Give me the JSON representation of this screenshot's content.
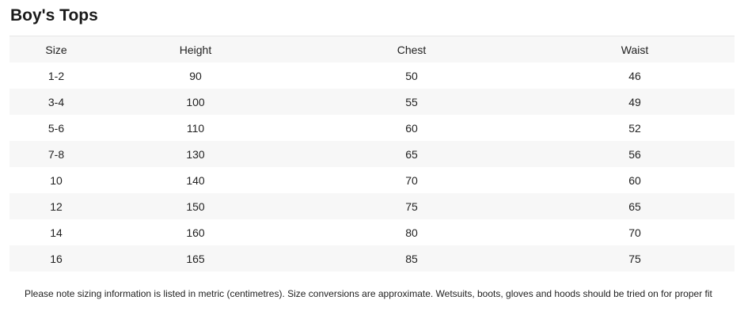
{
  "title": "Boy's Tops",
  "columns": [
    "Size",
    "Height",
    "Chest",
    "Waist"
  ],
  "rows": [
    [
      "1-2",
      "90",
      "50",
      "46"
    ],
    [
      "3-4",
      "100",
      "55",
      "49"
    ],
    [
      "5-6",
      "110",
      "60",
      "52"
    ],
    [
      "7-8",
      "130",
      "65",
      "56"
    ],
    [
      "10",
      "140",
      "70",
      "60"
    ],
    [
      "12",
      "150",
      "75",
      "65"
    ],
    [
      "14",
      "160",
      "80",
      "70"
    ],
    [
      "16",
      "165",
      "85",
      "75"
    ]
  ],
  "note": "Please note sizing information is listed in metric (centimetres). Size conversions are approximate. Wetsuits, boots, gloves and hoods should be tried on for proper fit"
}
